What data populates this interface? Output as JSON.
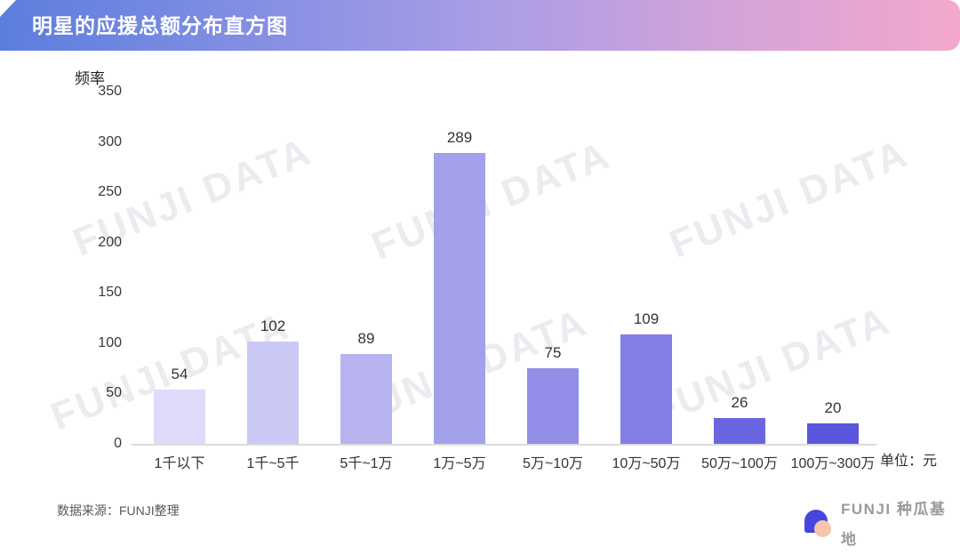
{
  "header": {
    "title": "明星的应援总额分布直方图"
  },
  "watermark": {
    "text": "FUNJI DATA"
  },
  "chart_data": {
    "type": "bar",
    "title": "明星的应援总额分布直方图",
    "categories": [
      "1千以下",
      "1千~5千",
      "5千~1万",
      "1万~5万",
      "5万~10万",
      "10万~50万",
      "50万~100万",
      "100万~300万"
    ],
    "values": [
      54,
      102,
      89,
      289,
      75,
      109,
      26,
      20
    ],
    "xlabel": "",
    "ylabel": "频率",
    "unit_label": "单位：元",
    "yticks": [
      0,
      50,
      100,
      150,
      200,
      250,
      300,
      350
    ],
    "ylim": [
      0,
      350
    ],
    "grid": "off",
    "legend": "none",
    "bar_colors": [
      "#dedcfa",
      "#cac8f5",
      "#b7b4f0",
      "#a3a0ec",
      "#938fe8",
      "#827ee4",
      "#6a66df",
      "#5b57dc"
    ]
  },
  "footer": {
    "source": "数据来源：FUNJI整理",
    "brand": "FUNJI 种瓜基地"
  },
  "colors": {
    "header_gradient_left": "#5b7edd",
    "header_gradient_mid": "#a89de6",
    "header_gradient_right": "#f3a8cb",
    "watermark": "#ebebf0",
    "axis_line": "#dcdcdc",
    "logo_blue": "#4745dc",
    "logo_peach": "#f6c5ac"
  }
}
